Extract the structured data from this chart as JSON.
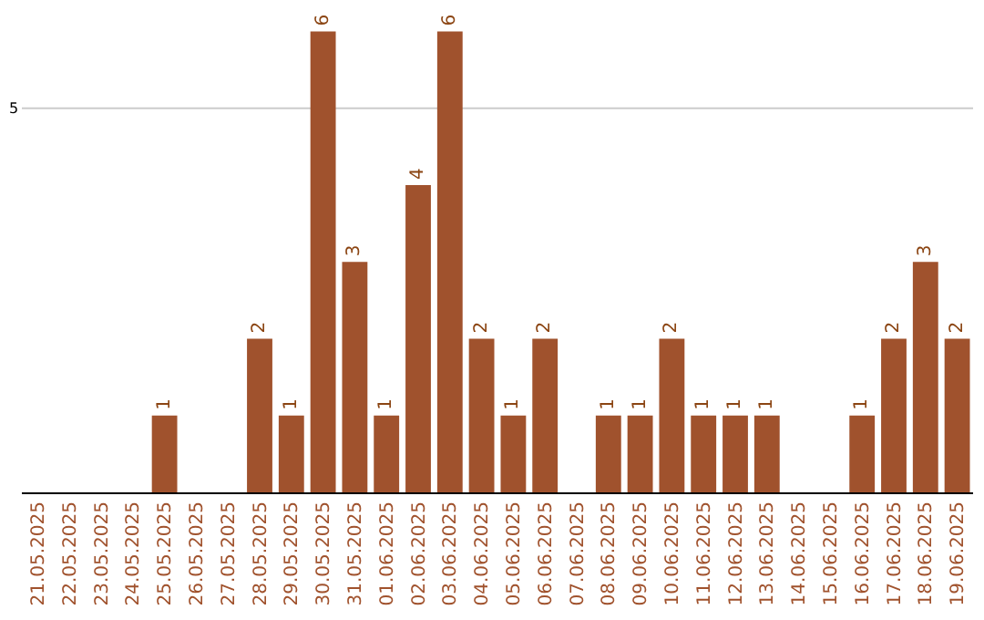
{
  "chart_data": {
    "type": "bar",
    "categories": [
      "21.05.2025",
      "22.05.2025",
      "23.05.2025",
      "24.05.2025",
      "25.05.2025",
      "26.05.2025",
      "27.05.2025",
      "28.05.2025",
      "29.05.2025",
      "30.05.2025",
      "31.05.2025",
      "01.06.2025",
      "02.06.2025",
      "03.06.2025",
      "04.06.2025",
      "05.06.2025",
      "06.06.2025",
      "07.06.2025",
      "08.06.2025",
      "09.06.2025",
      "10.06.2025",
      "11.06.2025",
      "12.06.2025",
      "13.06.2025",
      "14.06.2025",
      "15.06.2025",
      "16.06.2025",
      "17.06.2025",
      "18.06.2025",
      "19.06.2025"
    ],
    "values": [
      0,
      0,
      0,
      0,
      1,
      0,
      0,
      2,
      1,
      6,
      3,
      1,
      4,
      6,
      2,
      1,
      2,
      0,
      1,
      1,
      2,
      1,
      1,
      1,
      0,
      0,
      1,
      2,
      3,
      2
    ],
    "value_labels": [
      null,
      null,
      null,
      null,
      "1",
      null,
      null,
      "2",
      "1",
      "6",
      "3",
      "1",
      "4",
      "6",
      "2",
      "1",
      "2",
      null,
      "1",
      "1",
      "2",
      "1",
      "1",
      "1",
      null,
      null,
      "1",
      "2",
      "3",
      "2"
    ],
    "color": "#a0522d",
    "ref_lines": [
      {
        "axis": "y",
        "value": 5,
        "label": "5",
        "color": "#cccccc"
      }
    ],
    "legend": false
  }
}
